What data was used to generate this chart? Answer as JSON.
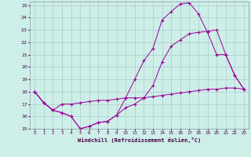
{
  "xlabel": "Windchill (Refroidissement éolien,°C)",
  "bg_color": "#ceeee8",
  "line_color": "#990099",
  "grid_color": "#aacccc",
  "xlim": [
    -0.5,
    23.5
  ],
  "ylim": [
    15,
    25.3
  ],
  "yticks": [
    15,
    16,
    17,
    18,
    19,
    20,
    21,
    22,
    23,
    24,
    25
  ],
  "xticks": [
    0,
    1,
    2,
    3,
    4,
    5,
    6,
    7,
    8,
    9,
    10,
    11,
    12,
    13,
    14,
    15,
    16,
    17,
    18,
    19,
    20,
    21,
    22,
    23
  ],
  "series": [
    {
      "x": [
        0,
        1,
        2,
        3,
        4,
        5,
        6,
        7,
        8,
        9,
        10,
        11,
        12,
        13,
        14,
        15,
        16,
        17,
        18,
        19,
        20,
        21,
        22,
        23
      ],
      "y": [
        18,
        17.1,
        16.5,
        17,
        17,
        17.1,
        17.2,
        17.3,
        17.3,
        17.4,
        17.5,
        17.5,
        17.5,
        17.6,
        17.7,
        17.8,
        17.9,
        18.0,
        18.1,
        18.2,
        18.2,
        18.3,
        18.3,
        18.2
      ]
    },
    {
      "x": [
        0,
        1,
        2,
        3,
        4,
        5,
        6,
        7,
        8,
        9,
        10,
        11,
        12,
        13,
        14,
        15,
        16,
        17,
        18,
        19,
        20,
        21,
        22,
        23
      ],
      "y": [
        18,
        17.1,
        16.5,
        16.3,
        16.0,
        15.0,
        15.2,
        15.5,
        15.6,
        16.1,
        16.7,
        17.0,
        17.5,
        18.5,
        20.4,
        21.7,
        22.2,
        22.7,
        22.8,
        22.9,
        23.0,
        21.0,
        19.3,
        18.2
      ]
    },
    {
      "x": [
        0,
        1,
        2,
        3,
        4,
        5,
        6,
        7,
        8,
        9,
        10,
        11,
        12,
        13,
        14,
        15,
        16,
        17,
        18,
        19,
        20,
        21,
        22,
        23
      ],
      "y": [
        18,
        17.1,
        16.5,
        16.3,
        16.0,
        15.0,
        15.2,
        15.5,
        15.6,
        16.1,
        17.5,
        19.0,
        20.5,
        21.5,
        23.8,
        24.5,
        25.1,
        25.2,
        24.3,
        22.8,
        21.0,
        21.0,
        19.3,
        18.2
      ]
    }
  ]
}
